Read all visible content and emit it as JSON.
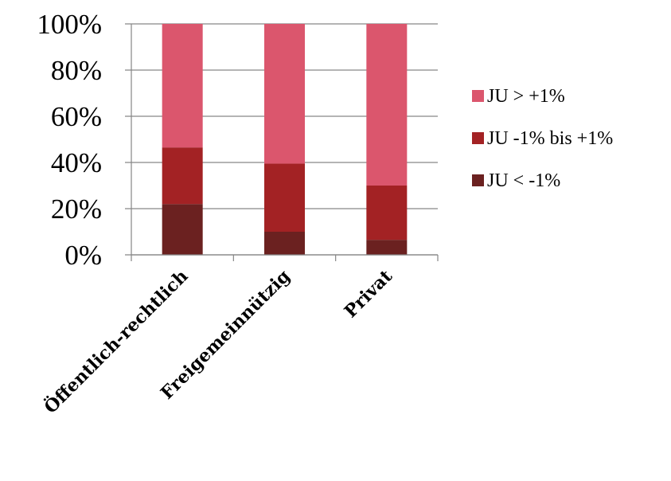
{
  "chart_data": {
    "type": "bar",
    "stacked": true,
    "normalized": true,
    "title": "",
    "xlabel": "",
    "ylabel": "",
    "categories": [
      "Öffentlich-rechtlich",
      "Freigemeinnützig",
      "Privat"
    ],
    "series": [
      {
        "name": "JU < -1%",
        "color": "#6b2120",
        "values": [
          22,
          10,
          6.5
        ]
      },
      {
        "name": "JU -1% bis +1%",
        "color": "#a32224",
        "values": [
          24.5,
          29.5,
          23.5
        ]
      },
      {
        "name": "JU > +1%",
        "color": "#db566d",
        "values": [
          53.5,
          60.5,
          70
        ]
      }
    ],
    "ylim": [
      0,
      100
    ],
    "yticks": [
      "0%",
      "20%",
      "40%",
      "60%",
      "80%",
      "100%"
    ],
    "grid": true,
    "legend_position": "right"
  }
}
